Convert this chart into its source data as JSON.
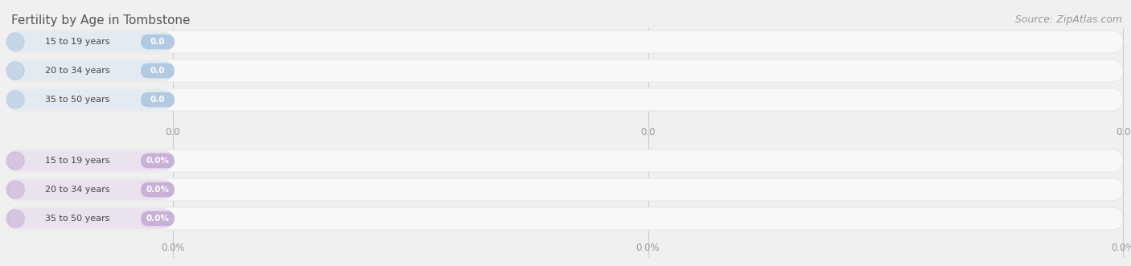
{
  "title": "Fertility by Age in Tombstone",
  "source": "Source: ZipAtlas.com",
  "background_color": "#f0f0f0",
  "top_section": {
    "labels": [
      "15 to 19 years",
      "20 to 34 years",
      "35 to 50 years"
    ],
    "values": [
      0.0,
      0.0,
      0.0
    ],
    "bar_color": "#aac4e0",
    "tick_labels": [
      "0.0",
      "0.0",
      "0.0"
    ]
  },
  "bottom_section": {
    "labels": [
      "15 to 19 years",
      "20 to 34 years",
      "35 to 50 years"
    ],
    "values": [
      0.0,
      0.0,
      0.0
    ],
    "bar_color": "#c4a8d4",
    "tick_labels": [
      "0.0%",
      "0.0%",
      "0.0%"
    ]
  },
  "fig_width": 14.06,
  "fig_height": 3.31,
  "dpi": 100
}
